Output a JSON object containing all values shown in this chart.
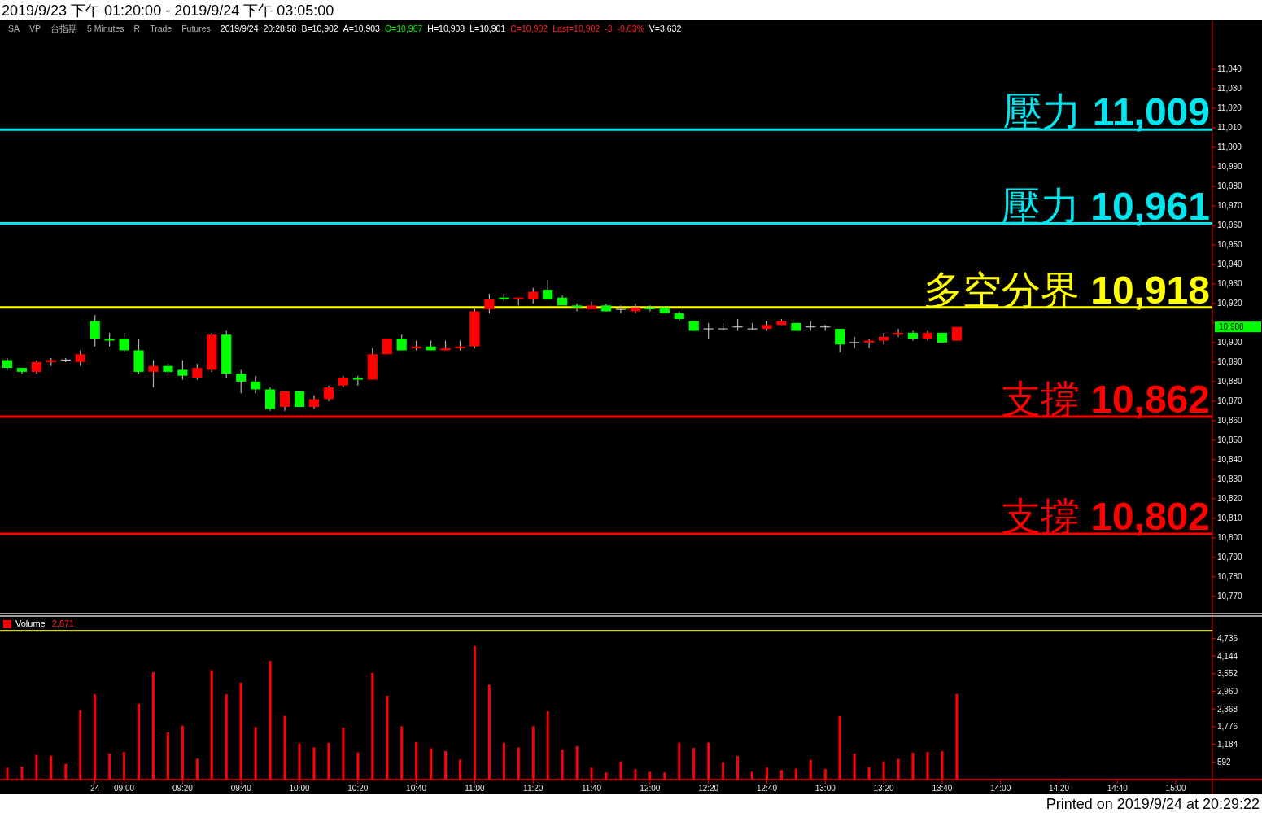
{
  "chart_data": [
    {
      "type": "candlestick",
      "title": "2019/9/23 下午 01:20:00 - 2019/9/24 下午 03:05:00",
      "categories": [
        null,
        null,
        null,
        null,
        null,
        null,
        null,
        null,
        null,
        null,
        null,
        null,
        null,
        null,
        null,
        null,
        null,
        null,
        null,
        null,
        null,
        null,
        null,
        null,
        null,
        null,
        null,
        null,
        null,
        null,
        null,
        null,
        null,
        null,
        null,
        null,
        null,
        null,
        null,
        null,
        null,
        null,
        null,
        null,
        null,
        null,
        null,
        null,
        null,
        null,
        null,
        null,
        null,
        null,
        null,
        null,
        null,
        null,
        null,
        null,
        null,
        null,
        null,
        null,
        null,
        null,
        null,
        null,
        null,
        null,
        null,
        null,
        null,
        null,
        null,
        null,
        null,
        null,
        null,
        null,
        null,
        null,
        null
      ],
      "ohlc": [
        [
          10891,
          10892,
          10886,
          10887
        ],
        [
          10887,
          10887,
          10884,
          10885
        ],
        [
          10885,
          10891,
          10884,
          10890
        ],
        [
          10890,
          10892,
          10888,
          10891
        ],
        [
          10891,
          10892,
          10890,
          10891
        ],
        [
          10890,
          10896,
          10888,
          10894
        ],
        [
          10911,
          10914,
          10898,
          10902
        ],
        [
          10902,
          10905,
          10898,
          10901
        ],
        [
          10902,
          10905,
          10895,
          10896
        ],
        [
          10896,
          10902,
          10884,
          10885
        ],
        [
          10885,
          10891,
          10877,
          10888
        ],
        [
          10888,
          10889,
          10883,
          10885
        ],
        [
          10886,
          10891,
          10881,
          10883
        ],
        [
          10882,
          10889,
          10881,
          10887
        ],
        [
          10886,
          10905,
          10885,
          10904
        ],
        [
          10904,
          10906,
          10882,
          10884
        ],
        [
          10884,
          10886,
          10874,
          10880
        ],
        [
          10880,
          10883,
          10874,
          10876
        ],
        [
          10876,
          10877,
          10865,
          10866
        ],
        [
          10867,
          10875,
          10865,
          10875
        ],
        [
          10875,
          10875,
          10867,
          10867
        ],
        [
          10867,
          10873,
          10866,
          10871
        ],
        [
          10871,
          10878,
          10870,
          10877
        ],
        [
          10878,
          10883,
          10877,
          10882
        ],
        [
          10882,
          10883,
          10878,
          10881
        ],
        [
          10881,
          10897,
          10881,
          10894
        ],
        [
          10894,
          10902,
          10894,
          10902
        ],
        [
          10902,
          10904,
          10896,
          10896
        ],
        [
          10897,
          10901,
          10896,
          10898
        ],
        [
          10898,
          10901,
          10896,
          10896
        ],
        [
          10896,
          10901,
          10896,
          10897
        ],
        [
          10897,
          10901,
          10896,
          10898
        ],
        [
          10898,
          10918,
          10897,
          10916
        ],
        [
          10917,
          10925,
          10915,
          10922
        ],
        [
          10923,
          10925,
          10921,
          10922
        ],
        [
          10922,
          10923,
          10919,
          10923
        ],
        [
          10922,
          10928,
          10920,
          10926
        ],
        [
          10927,
          10932,
          10922,
          10922
        ],
        [
          10923,
          10924,
          10919,
          10919
        ],
        [
          10919,
          10920,
          10916,
          10918
        ],
        [
          10917,
          10921,
          10917,
          10919
        ],
        [
          10919,
          10920,
          10916,
          10916
        ],
        [
          10917,
          10919,
          10915,
          10917
        ],
        [
          10916,
          10920,
          10915,
          10918
        ],
        [
          10918,
          10919,
          10916,
          10917
        ],
        [
          10918,
          10918,
          10915,
          10915
        ],
        [
          10915,
          10916,
          10911,
          10912
        ],
        [
          10911,
          10911,
          10906,
          10906
        ],
        [
          10907,
          10910,
          10902,
          10907
        ],
        [
          10907,
          10910,
          10906,
          10907
        ],
        [
          10908,
          10912,
          10906,
          10908
        ],
        [
          10907,
          10910,
          10907,
          10907
        ],
        [
          10907,
          10911,
          10906,
          10909
        ],
        [
          10909,
          10912,
          10909,
          10911
        ],
        [
          10910,
          10910,
          10906,
          10906
        ],
        [
          10908,
          10911,
          10906,
          10908
        ],
        [
          10908,
          10909,
          10906,
          10908
        ],
        [
          10907,
          10907,
          10895,
          10899
        ],
        [
          10900,
          10903,
          10897,
          10900
        ],
        [
          10900,
          10902,
          10897,
          10901
        ],
        [
          10901,
          10905,
          10899,
          10903
        ],
        [
          10904,
          10907,
          10903,
          10905
        ],
        [
          10905,
          10906,
          10901,
          10902
        ],
        [
          10902,
          10906,
          10901,
          10905
        ],
        [
          10905,
          10905,
          10900,
          10900
        ],
        [
          10901,
          10908,
          10901,
          10908
        ],
        null,
        null,
        null,
        null,
        null,
        null,
        null,
        null,
        null,
        null,
        null,
        null,
        null,
        null,
        null,
        null,
        null
      ],
      "colors": [
        "#00ff00",
        "#00ff00",
        "#ff0000",
        "#ff0000",
        "#c0c0c0",
        "#ff0000",
        "#00ff00",
        "#00ff00",
        "#00ff00",
        "#00ff00",
        "#ff0000",
        "#00ff00",
        "#00ff00",
        "#ff0000",
        "#ff0000",
        "#00ff00",
        "#00ff00",
        "#00ff00",
        "#00ff00",
        "#ff0000",
        "#00ff00",
        "#ff0000",
        "#ff0000",
        "#ff0000",
        "#00ff00",
        "#ff0000",
        "#ff0000",
        "#00ff00",
        "#ff0000",
        "#00ff00",
        "#ff0000",
        "#ff0000",
        "#ff0000",
        "#ff0000",
        "#00ff00",
        "#ff0000",
        "#ff0000",
        "#00ff00",
        "#00ff00",
        "#00ff00",
        "#ff0000",
        "#00ff00",
        "#c0c0c0",
        "#ff0000",
        "#00ff00",
        "#00ff00",
        "#00ff00",
        "#00ff00",
        "#c0c0c0",
        "#c0c0c0",
        "#c0c0c0",
        "#c0c0c0",
        "#ff0000",
        "#ff0000",
        "#00ff00",
        "#c0c0c0",
        "#c0c0c0",
        "#00ff00",
        "#c0c0c0",
        "#ff0000",
        "#ff0000",
        "#ff0000",
        "#00ff00",
        "#ff0000",
        "#00ff00",
        "#ff0000",
        null,
        null,
        null,
        null,
        null,
        null,
        null,
        null,
        null,
        null,
        null,
        null,
        null,
        null,
        null,
        null,
        null
      ],
      "ylim": [
        10762,
        11065
      ],
      "yticks": [
        {
          "value": 10770,
          "label": "10,770"
        },
        {
          "value": 10780,
          "label": "10,780"
        },
        {
          "value": 10790,
          "label": "10,790"
        },
        {
          "value": 10800,
          "label": "10,800"
        },
        {
          "value": 10810,
          "label": "10,810"
        },
        {
          "value": 10820,
          "label": "10,820"
        },
        {
          "value": 10830,
          "label": "10,830"
        },
        {
          "value": 10840,
          "label": "10,840"
        },
        {
          "value": 10850,
          "label": "10,850"
        },
        {
          "value": 10860,
          "label": "10,860"
        },
        {
          "value": 10870,
          "label": "10,870"
        },
        {
          "value": 10880,
          "label": "10,880"
        },
        {
          "value": 10890,
          "label": "10,890"
        },
        {
          "value": 10900,
          "label": "10,900"
        },
        {
          "value": 10910,
          "label": null
        },
        {
          "value": 10920,
          "label": "10,920"
        },
        {
          "value": 10930,
          "label": "10,930"
        },
        {
          "value": 10940,
          "label": "10,940"
        },
        {
          "value": 10950,
          "label": "10,950"
        },
        {
          "value": 10960,
          "label": "10,960"
        },
        {
          "value": 10970,
          "label": "10,970"
        },
        {
          "value": 10980,
          "label": "10,980"
        },
        {
          "value": 10990,
          "label": "10,990"
        },
        {
          "value": 11000,
          "label": "11,000"
        },
        {
          "value": 11010,
          "label": "11,010"
        },
        {
          "value": 11020,
          "label": "11,020"
        },
        {
          "value": 11030,
          "label": "11,030"
        },
        {
          "value": 11040,
          "label": "11,040"
        }
      ],
      "tick_labels": "y",
      "ref_lines": [
        {
          "axis": "y",
          "value": 11009,
          "label": "壓力 11,009",
          "color": "#00e5ee"
        },
        {
          "axis": "y",
          "value": 10961,
          "label": "壓力 10,961",
          "color": "#00e5ee"
        },
        {
          "axis": "y",
          "value": 10918,
          "label": "多空分界 10,918",
          "color": "#ffff00"
        },
        {
          "axis": "y",
          "value": 10862,
          "label": "支撐 10,862",
          "color": "#ff0000"
        },
        {
          "axis": "y",
          "value": 10802,
          "label": "支撐 10,802",
          "color": "#ff0000"
        }
      ],
      "annotations": [
        "SA",
        "VP",
        "台指期",
        "5 Minutes",
        "R",
        "Trade",
        "Futures",
        "2019/9/24",
        "20:28:58",
        "B=10,902",
        "A=10,903",
        "O=10,907",
        "H=10,908",
        "L=10,901",
        "C=10,902",
        "Last=10,902",
        "-3",
        "-0.03%",
        "V=3,632",
        "10,908",
        "Printed on 2019/9/24 at 20:29:22"
      ]
    },
    {
      "type": "bar",
      "categories": [
        null,
        null,
        null,
        null,
        null,
        null,
        "24",
        null,
        "09:00",
        null,
        null,
        null,
        "09:20",
        null,
        null,
        null,
        "09:40",
        null,
        null,
        null,
        "10:00",
        null,
        null,
        null,
        "10:20",
        null,
        null,
        null,
        "10:40",
        null,
        null,
        null,
        "11:00",
        null,
        null,
        null,
        "11:20",
        null,
        null,
        null,
        "11:40",
        null,
        null,
        null,
        "12:00",
        null,
        null,
        null,
        "12:20",
        null,
        null,
        null,
        "12:40",
        null,
        null,
        null,
        "13:00",
        null,
        null,
        null,
        "13:20",
        null,
        null,
        null,
        "13:40",
        null,
        null,
        null,
        "14:00",
        null,
        null,
        null,
        "14:20",
        null,
        null,
        null,
        "14:40",
        null,
        null,
        null,
        "15:00",
        null,
        null
      ],
      "series": [
        {
          "name": "Volume",
          "color": "#ff0000",
          "values": [
            400,
            430,
            830,
            800,
            530,
            2320,
            2860,
            880,
            930,
            2540,
            3600,
            1580,
            1810,
            700,
            3670,
            2860,
            3250,
            1760,
            3980,
            2140,
            1210,
            1080,
            1230,
            1740,
            910,
            3580,
            2810,
            1790,
            1260,
            1050,
            960,
            670,
            4480,
            3180,
            1230,
            1080,
            1790,
            2290,
            1000,
            1120,
            400,
            240,
            610,
            350,
            260,
            240,
            1240,
            1060,
            1240,
            580,
            790,
            260,
            400,
            320,
            370,
            660,
            350,
            2130,
            870,
            420,
            610,
            690,
            900,
            930,
            950,
            2870,
            null,
            null,
            null,
            null,
            null,
            null,
            null,
            null,
            null,
            null,
            null,
            null,
            null,
            null,
            null,
            null,
            null
          ]
        }
      ],
      "ylim": [
        0,
        5400
      ],
      "yticks": [
        592,
        {
          "value": 1184,
          "label": "1,184"
        },
        {
          "value": 1776,
          "label": "1,776"
        },
        {
          "value": 2368,
          "label": "2,368"
        },
        {
          "value": 2960,
          "label": "2,960"
        },
        {
          "value": 3552,
          "label": "3,552"
        },
        {
          "value": 4144,
          "label": "4,144"
        },
        {
          "value": 4736,
          "label": "4,736"
        }
      ],
      "legend": "top left",
      "ref_lines": [
        {
          "axis": "y",
          "value": 5000,
          "color": "#ffff00"
        }
      ],
      "annotations": [
        "2,871"
      ]
    }
  ]
}
